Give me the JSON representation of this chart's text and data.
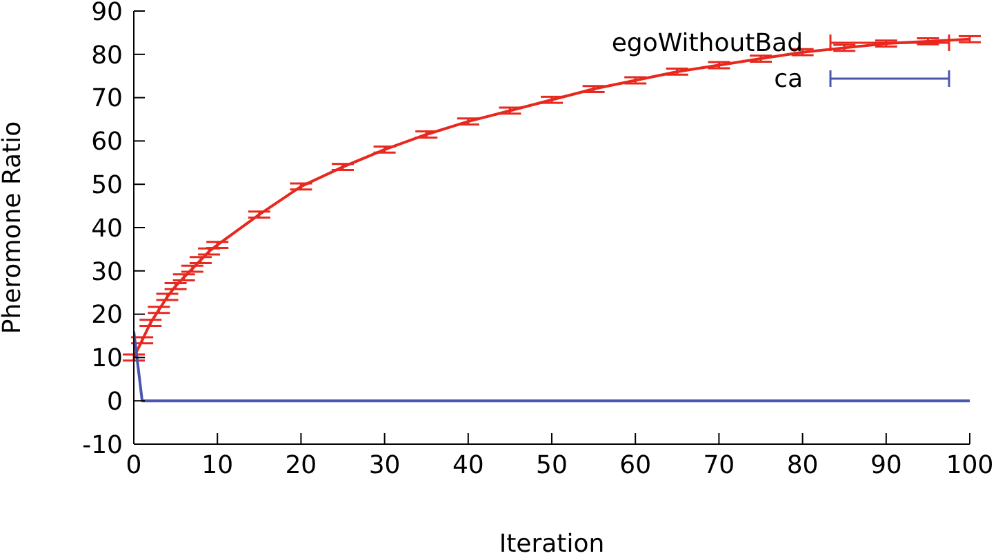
{
  "chart_data": {
    "type": "line",
    "xlabel": "Iteration",
    "ylabel": "Pheromone Ratio",
    "x": [
      0,
      1,
      2,
      3,
      4,
      5,
      6,
      7,
      8,
      9,
      10,
      15,
      20,
      25,
      30,
      35,
      40,
      45,
      50,
      55,
      60,
      65,
      70,
      75,
      80,
      85,
      90,
      95,
      100
    ],
    "series": [
      {
        "name": "egoWithoutBad",
        "color": "#e8281e",
        "values": [
          10,
          14,
          18,
          21,
          24,
          26.5,
          28.5,
          30.5,
          32.5,
          34.5,
          36,
          43,
          49.5,
          54,
          58,
          61.5,
          64.5,
          67,
          69.5,
          72,
          74,
          76,
          77.5,
          79,
          80.5,
          81.5,
          82.5,
          83,
          83.5
        ],
        "errors": [
          0.7,
          0.7,
          0.7,
          0.7,
          0.7,
          0.7,
          0.7,
          0.7,
          0.7,
          0.7,
          0.7,
          0.7,
          0.7,
          0.7,
          0.7,
          0.7,
          0.7,
          0.7,
          0.7,
          0.7,
          0.7,
          0.7,
          0.7,
          0.7,
          0.7,
          0.7,
          0.7,
          0.7,
          0.7
        ]
      },
      {
        "name": "ca",
        "color": "#4a55b0",
        "values": [
          16,
          0,
          0,
          0,
          0,
          0,
          0,
          0,
          0,
          0,
          0,
          0,
          0,
          0,
          0,
          0,
          0,
          0,
          0,
          0,
          0,
          0,
          0,
          0,
          0,
          0,
          0,
          0,
          0
        ]
      }
    ],
    "xlim": [
      0,
      100
    ],
    "xticks": [
      0,
      10,
      20,
      30,
      40,
      50,
      60,
      70,
      80,
      90,
      100
    ],
    "ylim": [
      -10,
      90
    ],
    "yticks": [
      -10,
      0,
      10,
      20,
      30,
      40,
      50,
      60,
      70,
      80,
      90
    ],
    "grid": false,
    "legend": "top right",
    "marker": "none",
    "line_style": "solid"
  }
}
